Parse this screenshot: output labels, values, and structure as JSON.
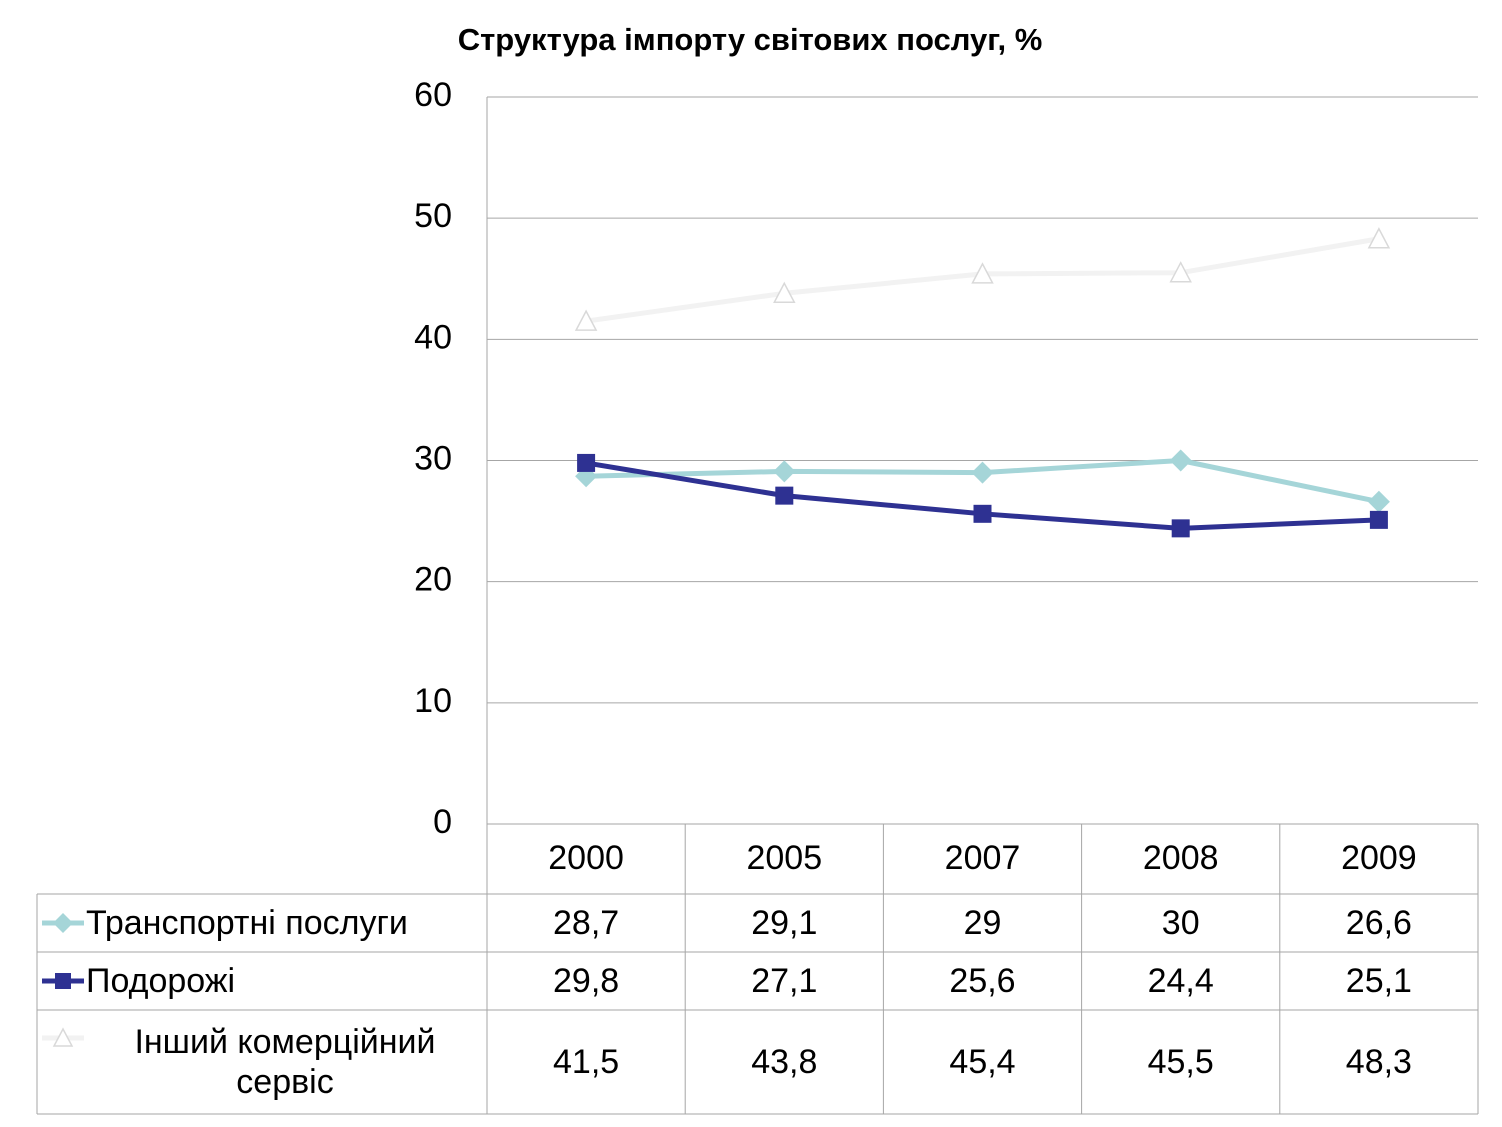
{
  "chart_data": {
    "type": "line",
    "title": "Структура імпорту світових послуг, %",
    "categories": [
      "2000",
      "2005",
      "2007",
      "2008",
      "2009"
    ],
    "series": [
      {
        "name": "Транспортні послуги",
        "color": "#a5d5d8",
        "marker": "diamond",
        "values": [
          28.7,
          29.1,
          29,
          30,
          26.6
        ],
        "value_labels": [
          "28,7",
          "29,1",
          "29",
          "30",
          "26,6"
        ]
      },
      {
        "name": "Подорожі",
        "color": "#2e3192",
        "marker": "square",
        "values": [
          29.8,
          27.1,
          25.6,
          24.4,
          25.1
        ],
        "value_labels": [
          "29,8",
          "27,1",
          "25,6",
          "24,4",
          "25,1"
        ]
      },
      {
        "name": "Інший комерційний сервіс",
        "color": "#f2f2f2",
        "marker": "triangle",
        "values": [
          41.5,
          43.8,
          45.4,
          45.5,
          48.3
        ],
        "value_labels": [
          "41,5",
          "43,8",
          "45,4",
          "45,5",
          "48,3"
        ]
      }
    ],
    "ylim": [
      0,
      60
    ],
    "yticks": [
      0,
      10,
      20,
      30,
      40,
      50,
      60
    ],
    "grid": true
  }
}
